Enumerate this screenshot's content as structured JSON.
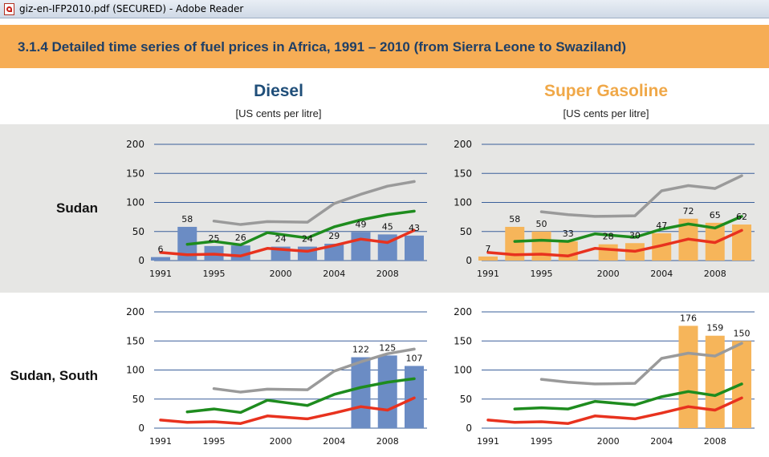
{
  "window": {
    "title": "giz-en-IFP2010.pdf (SECURED) - Adobe Reader",
    "icon": "pdf-icon"
  },
  "section": {
    "title": "3.1.4  Detailed time series of fuel prices in Africa, 1991 – 2010 (from Sierra Leone to Swaziland)"
  },
  "columns": [
    {
      "title": "Diesel",
      "unit": "[US cents per litre]",
      "color": "#1f4e79"
    },
    {
      "title": "Super Gasoline",
      "unit": "[US cents per litre]",
      "color": "#f0a848"
    }
  ],
  "rows": [
    {
      "label": "Sudan"
    },
    {
      "label": "Sudan, South"
    }
  ],
  "colors": {
    "header_band": "#f6ad55",
    "title_text": "#1f3f66",
    "diesel_bar": "#6b8cc4",
    "gasoline_bar": "#f6b55a",
    "line_gray": "#9a9a9a",
    "line_green": "#1e8c1e",
    "line_red": "#e8321e",
    "gridline": "#3a5f9a"
  },
  "chart_data": [
    {
      "type": "bar",
      "row": "Sudan",
      "fuel": "Diesel",
      "ylim": [
        0,
        200
      ],
      "yticks": [
        0,
        50,
        100,
        150,
        200
      ],
      "x_ticks": [
        "1991",
        "1995",
        "2000",
        "2004",
        "2008"
      ],
      "x_tick_positions": [
        1991,
        1995,
        2000,
        2004,
        2008
      ],
      "bars": [
        {
          "x": 1991,
          "value": 6,
          "label": "6"
        },
        {
          "x": 1993,
          "value": 58,
          "label": "58"
        },
        {
          "x": 1995,
          "value": 25,
          "label": "25"
        },
        {
          "x": 1997,
          "value": 26,
          "label": "26"
        },
        {
          "x": 2000,
          "value": 24,
          "label": "24"
        },
        {
          "x": 2002,
          "value": 24,
          "label": "24"
        },
        {
          "x": 2004,
          "value": 29,
          "label": "29"
        },
        {
          "x": 2006,
          "value": 49,
          "label": "49"
        },
        {
          "x": 2008,
          "value": 45,
          "label": "45"
        },
        {
          "x": 2010,
          "value": 43,
          "label": "43"
        }
      ],
      "lines": [
        {
          "color": "#9a9a9a",
          "points": [
            [
              1995,
              68
            ],
            [
              1997,
              62
            ],
            [
              1999,
              67
            ],
            [
              2002,
              66
            ],
            [
              2004,
              98
            ],
            [
              2006,
              114
            ],
            [
              2008,
              128
            ],
            [
              2010,
              136
            ]
          ]
        },
        {
          "color": "#1e8c1e",
          "points": [
            [
              1993,
              28
            ],
            [
              1995,
              33
            ],
            [
              1997,
              27
            ],
            [
              1999,
              48
            ],
            [
              2002,
              39
            ],
            [
              2004,
              58
            ],
            [
              2006,
              70
            ],
            [
              2008,
              79
            ],
            [
              2010,
              85
            ]
          ]
        },
        {
          "color": "#e8321e",
          "points": [
            [
              1991,
              14
            ],
            [
              1993,
              10
            ],
            [
              1995,
              11
            ],
            [
              1997,
              8
            ],
            [
              1999,
              21
            ],
            [
              2002,
              16
            ],
            [
              2004,
              26
            ],
            [
              2006,
              37
            ],
            [
              2008,
              31
            ],
            [
              2010,
              52
            ]
          ]
        }
      ]
    },
    {
      "type": "bar",
      "row": "Sudan",
      "fuel": "Super Gasoline",
      "ylim": [
        0,
        200
      ],
      "yticks": [
        0,
        50,
        100,
        150,
        200
      ],
      "x_ticks": [
        "1991",
        "1995",
        "2000",
        "2004",
        "2008"
      ],
      "x_tick_positions": [
        1991,
        1995,
        2000,
        2004,
        2008
      ],
      "bars": [
        {
          "x": 1991,
          "value": 7,
          "label": "7"
        },
        {
          "x": 1993,
          "value": 58,
          "label": "58"
        },
        {
          "x": 1995,
          "value": 50,
          "label": "50"
        },
        {
          "x": 1997,
          "value": 33,
          "label": "33"
        },
        {
          "x": 2000,
          "value": 28,
          "label": "28"
        },
        {
          "x": 2002,
          "value": 30,
          "label": "30"
        },
        {
          "x": 2004,
          "value": 47,
          "label": "47"
        },
        {
          "x": 2006,
          "value": 72,
          "label": "72"
        },
        {
          "x": 2008,
          "value": 65,
          "label": "65"
        },
        {
          "x": 2010,
          "value": 62,
          "label": "62"
        }
      ],
      "lines": [
        {
          "color": "#9a9a9a",
          "points": [
            [
              1995,
              84
            ],
            [
              1997,
              79
            ],
            [
              1999,
              76
            ],
            [
              2002,
              77
            ],
            [
              2004,
              120
            ],
            [
              2006,
              129
            ],
            [
              2008,
              124
            ],
            [
              2010,
              146
            ]
          ]
        },
        {
          "color": "#1e8c1e",
          "points": [
            [
              1993,
              33
            ],
            [
              1995,
              35
            ],
            [
              1997,
              33
            ],
            [
              1999,
              46
            ],
            [
              2002,
              40
            ],
            [
              2004,
              54
            ],
            [
              2006,
              63
            ],
            [
              2008,
              56
            ],
            [
              2010,
              76
            ]
          ]
        },
        {
          "color": "#e8321e",
          "points": [
            [
              1991,
              14
            ],
            [
              1993,
              10
            ],
            [
              1995,
              11
            ],
            [
              1997,
              8
            ],
            [
              1999,
              21
            ],
            [
              2002,
              16
            ],
            [
              2004,
              26
            ],
            [
              2006,
              37
            ],
            [
              2008,
              31
            ],
            [
              2010,
              52
            ]
          ]
        }
      ]
    },
    {
      "type": "bar",
      "row": "Sudan, South",
      "fuel": "Diesel",
      "ylim": [
        0,
        200
      ],
      "yticks": [
        0,
        50,
        100,
        150,
        200
      ],
      "x_ticks": [
        "1991",
        "1995",
        "2000",
        "2004",
        "2008"
      ],
      "x_tick_positions": [
        1991,
        1995,
        2000,
        2004,
        2008
      ],
      "bars": [
        {
          "x": 2006,
          "value": 122,
          "label": "122"
        },
        {
          "x": 2008,
          "value": 125,
          "label": "125"
        },
        {
          "x": 2010,
          "value": 107,
          "label": "107"
        }
      ],
      "lines": [
        {
          "color": "#9a9a9a",
          "points": [
            [
              1995,
              68
            ],
            [
              1997,
              62
            ],
            [
              1999,
              67
            ],
            [
              2002,
              66
            ],
            [
              2004,
              98
            ],
            [
              2006,
              114
            ],
            [
              2008,
              128
            ],
            [
              2010,
              136
            ]
          ]
        },
        {
          "color": "#1e8c1e",
          "points": [
            [
              1993,
              28
            ],
            [
              1995,
              33
            ],
            [
              1997,
              27
            ],
            [
              1999,
              48
            ],
            [
              2002,
              39
            ],
            [
              2004,
              58
            ],
            [
              2006,
              70
            ],
            [
              2008,
              79
            ],
            [
              2010,
              85
            ]
          ]
        },
        {
          "color": "#e8321e",
          "points": [
            [
              1991,
              14
            ],
            [
              1993,
              10
            ],
            [
              1995,
              11
            ],
            [
              1997,
              8
            ],
            [
              1999,
              21
            ],
            [
              2002,
              16
            ],
            [
              2004,
              26
            ],
            [
              2006,
              37
            ],
            [
              2008,
              31
            ],
            [
              2010,
              52
            ]
          ]
        }
      ]
    },
    {
      "type": "bar",
      "row": "Sudan, South",
      "fuel": "Super Gasoline",
      "ylim": [
        0,
        200
      ],
      "yticks": [
        0,
        50,
        100,
        150,
        200
      ],
      "x_ticks": [
        "1991",
        "1995",
        "2000",
        "2004",
        "2008"
      ],
      "x_tick_positions": [
        1991,
        1995,
        2000,
        2004,
        2008
      ],
      "bars": [
        {
          "x": 2006,
          "value": 176,
          "label": "176"
        },
        {
          "x": 2008,
          "value": 159,
          "label": "159"
        },
        {
          "x": 2010,
          "value": 150,
          "label": "150"
        }
      ],
      "lines": [
        {
          "color": "#9a9a9a",
          "points": [
            [
              1995,
              84
            ],
            [
              1997,
              79
            ],
            [
              1999,
              76
            ],
            [
              2002,
              77
            ],
            [
              2004,
              120
            ],
            [
              2006,
              129
            ],
            [
              2008,
              124
            ],
            [
              2010,
              146
            ]
          ]
        },
        {
          "color": "#1e8c1e",
          "points": [
            [
              1993,
              33
            ],
            [
              1995,
              35
            ],
            [
              1997,
              33
            ],
            [
              1999,
              46
            ],
            [
              2002,
              40
            ],
            [
              2004,
              54
            ],
            [
              2006,
              63
            ],
            [
              2008,
              56
            ],
            [
              2010,
              76
            ]
          ]
        },
        {
          "color": "#e8321e",
          "points": [
            [
              1991,
              14
            ],
            [
              1993,
              10
            ],
            [
              1995,
              11
            ],
            [
              1997,
              8
            ],
            [
              1999,
              21
            ],
            [
              2002,
              16
            ],
            [
              2004,
              26
            ],
            [
              2006,
              37
            ],
            [
              2008,
              31
            ],
            [
              2010,
              52
            ]
          ]
        }
      ]
    }
  ]
}
